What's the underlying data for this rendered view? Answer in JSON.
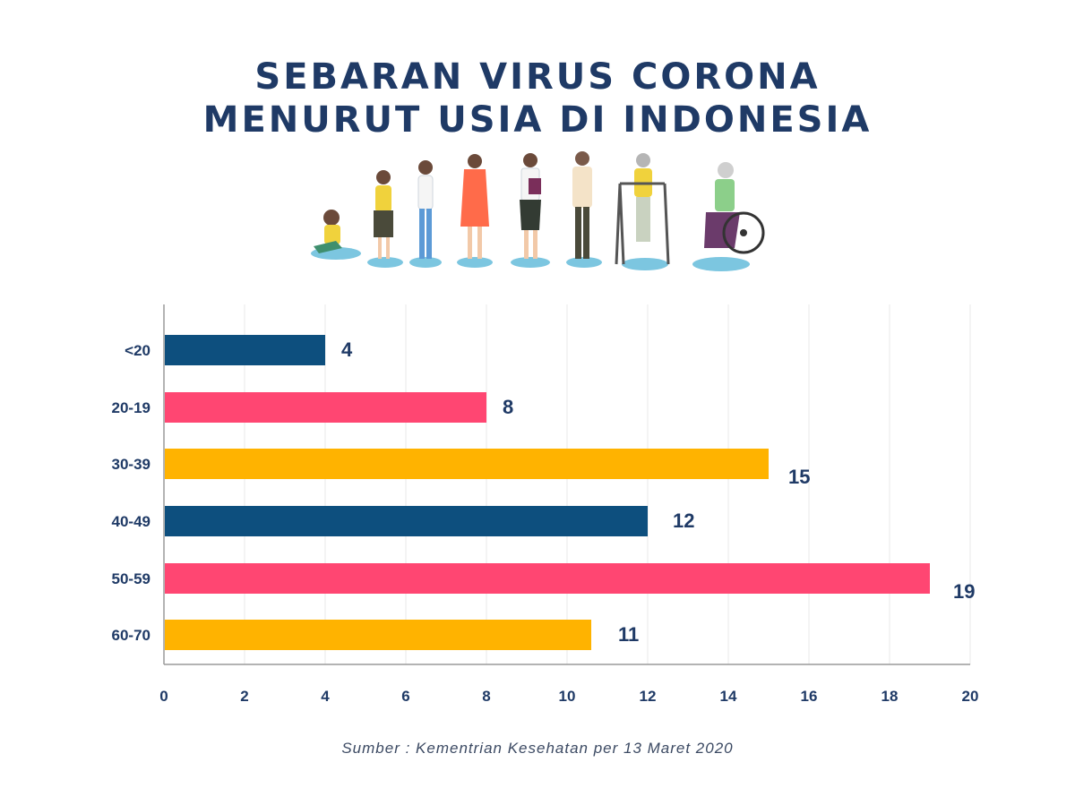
{
  "title": {
    "line1": "SEBARAN VIRUS CORONA",
    "line2": "MENURUT USIA DI INDONESIA"
  },
  "source": "Sumber : Kementrian Kesehatan per 13 Maret 2020",
  "colors": {
    "navy": "#0d4f7e",
    "pink": "#ff4672",
    "yellow": "#ffb300",
    "title": "#1f3a66"
  },
  "chart_data": {
    "type": "bar",
    "orientation": "horizontal",
    "categories": [
      "<20",
      "20-19",
      "30-39",
      "40-49",
      "50-59",
      "60-70"
    ],
    "values": [
      4,
      8,
      15,
      12,
      19,
      11
    ],
    "bar_lengths": [
      4,
      8,
      15,
      12,
      19,
      10.6
    ],
    "bar_colors": [
      "#0d4f7e",
      "#ff4672",
      "#ffb300",
      "#0d4f7e",
      "#ff4672",
      "#ffb300"
    ],
    "xlim": [
      0,
      20
    ],
    "xticks": [
      0,
      2,
      4,
      6,
      8,
      10,
      12,
      14,
      16,
      18,
      20
    ],
    "grid": true
  }
}
